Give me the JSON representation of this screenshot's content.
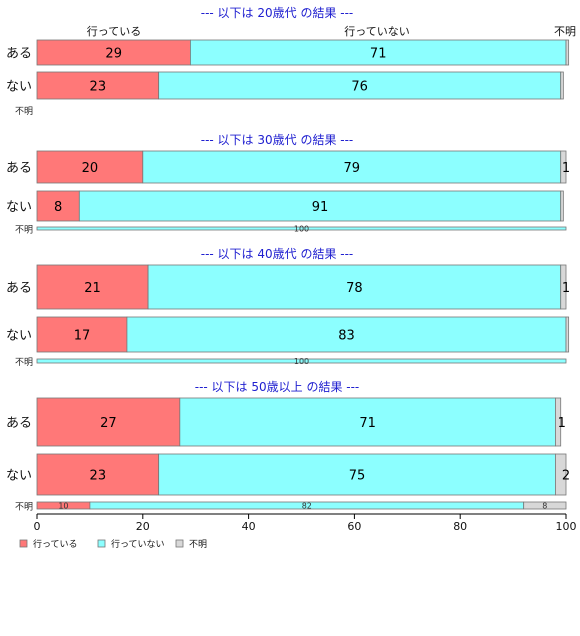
{
  "chart_data": {
    "type": "bar",
    "orientation": "horizontal",
    "stacked": "percent",
    "legend": [
      "行っている",
      "行っていない",
      "不明"
    ],
    "legend_position": "bottom-left",
    "colors": [
      "#ff7878",
      "#8cffff",
      "#d8d8d8"
    ],
    "top_headers": [
      "行っている",
      "行っていない",
      "不明"
    ],
    "xlim": [
      0,
      100
    ],
    "xticks": [
      0,
      20,
      40,
      60,
      80,
      100
    ],
    "groups": [
      {
        "title": "--- 以下は 20歳代 の結果 ---",
        "rows": [
          {
            "label": "ある",
            "values": [
              29,
              71,
              0.5
            ],
            "labels": [
              "29",
              "71",
              ""
            ]
          },
          {
            "label": "ない",
            "values": [
              23,
              76,
              0.5
            ],
            "labels": [
              "23",
              "76",
              ""
            ]
          },
          {
            "label": "不明",
            "values": [],
            "labels": []
          }
        ]
      },
      {
        "title": "--- 以下は 30歳代 の結果 ---",
        "rows": [
          {
            "label": "ある",
            "values": [
              20,
              79,
              1
            ],
            "labels": [
              "20",
              "79",
              "1"
            ]
          },
          {
            "label": "ない",
            "values": [
              8,
              91,
              0.5
            ],
            "labels": [
              "8",
              "91",
              ""
            ]
          },
          {
            "label": "不明",
            "values": [
              0,
              100,
              0
            ],
            "labels": [
              "",
              "100",
              ""
            ]
          }
        ]
      },
      {
        "title": "--- 以下は 40歳代 の結果 ---",
        "rows": [
          {
            "label": "ある",
            "values": [
              21,
              78,
              1
            ],
            "labels": [
              "21",
              "78",
              "1"
            ]
          },
          {
            "label": "ない",
            "values": [
              17,
              83,
              0.5
            ],
            "labels": [
              "17",
              "83",
              ""
            ]
          },
          {
            "label": "不明",
            "values": [
              0,
              100,
              0
            ],
            "labels": [
              "",
              "100",
              ""
            ]
          }
        ]
      },
      {
        "title": "--- 以下は 50歳以上 の結果 ---",
        "rows": [
          {
            "label": "ある",
            "values": [
              27,
              71,
              1
            ],
            "labels": [
              "27",
              "71",
              "1"
            ]
          },
          {
            "label": "ない",
            "values": [
              23,
              75,
              2
            ],
            "labels": [
              "23",
              "75",
              "2"
            ]
          },
          {
            "label": "不明",
            "values": [
              10,
              82,
              8
            ],
            "labels": [
              "10",
              "82",
              "8"
            ]
          }
        ]
      }
    ]
  }
}
